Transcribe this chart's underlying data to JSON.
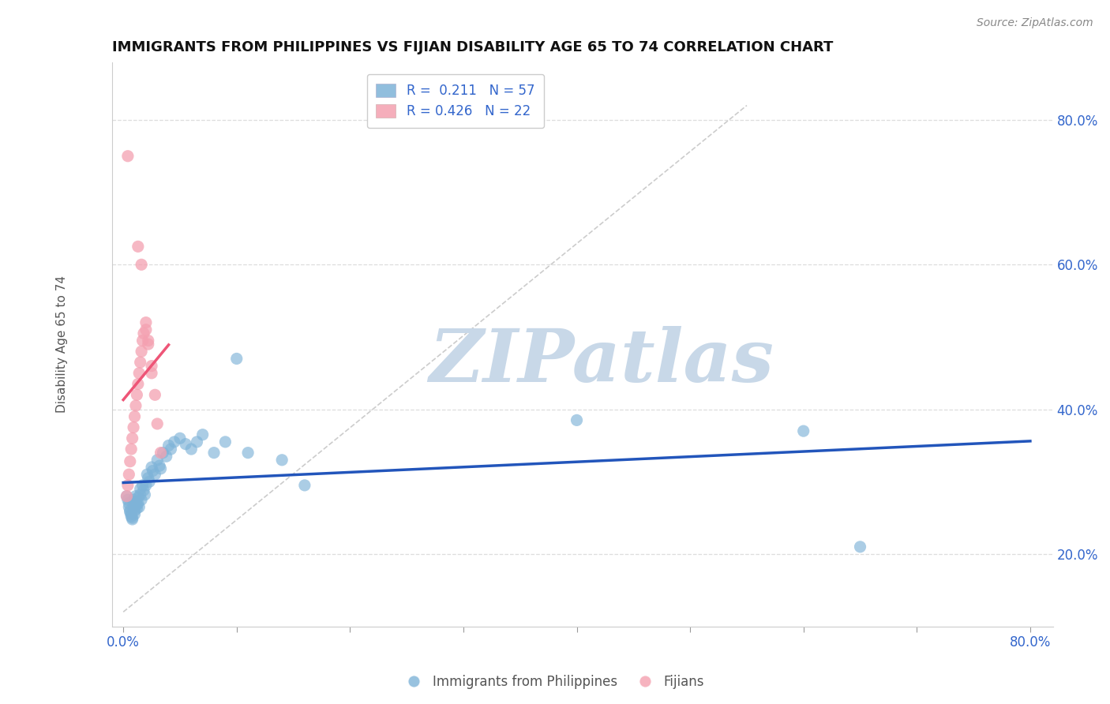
{
  "title": "IMMIGRANTS FROM PHILIPPINES VS FIJIAN DISABILITY AGE 65 TO 74 CORRELATION CHART",
  "source": "Source: ZipAtlas.com",
  "xlabel": "",
  "ylabel": "Disability Age 65 to 74",
  "xlim": [
    -0.01,
    0.82
  ],
  "ylim": [
    0.1,
    0.88
  ],
  "xticks": [
    0.0,
    0.1,
    0.2,
    0.3,
    0.4,
    0.5,
    0.6,
    0.7,
    0.8
  ],
  "xticklabels": [
    "0.0%",
    "",
    "",
    "",
    "",
    "",
    "",
    "",
    "80.0%"
  ],
  "yticks": [
    0.2,
    0.4,
    0.6,
    0.8
  ],
  "yticklabels": [
    "20.0%",
    "40.0%",
    "60.0%",
    "80.0%"
  ],
  "r_blue": 0.211,
  "n_blue": 57,
  "r_pink": 0.426,
  "n_pink": 22,
  "blue_color": "#7EB3D8",
  "pink_color": "#F4A0B0",
  "blue_line_color": "#2255BB",
  "pink_line_color": "#EE5577",
  "ref_line_color": "#CCCCCC",
  "watermark": "ZIPatlas",
  "watermark_color": "#C8D8E8",
  "blue_scatter_x": [
    0.003,
    0.004,
    0.005,
    0.005,
    0.006,
    0.006,
    0.007,
    0.007,
    0.008,
    0.008,
    0.009,
    0.009,
    0.01,
    0.01,
    0.01,
    0.011,
    0.011,
    0.012,
    0.012,
    0.013,
    0.013,
    0.014,
    0.015,
    0.015,
    0.016,
    0.017,
    0.018,
    0.019,
    0.02,
    0.021,
    0.022,
    0.023,
    0.025,
    0.026,
    0.028,
    0.03,
    0.032,
    0.033,
    0.035,
    0.038,
    0.04,
    0.042,
    0.045,
    0.05,
    0.055,
    0.06,
    0.065,
    0.07,
    0.08,
    0.09,
    0.1,
    0.11,
    0.14,
    0.16,
    0.4,
    0.6,
    0.65
  ],
  "blue_scatter_y": [
    0.28,
    0.275,
    0.27,
    0.265,
    0.26,
    0.258,
    0.255,
    0.252,
    0.25,
    0.248,
    0.275,
    0.27,
    0.265,
    0.26,
    0.255,
    0.28,
    0.272,
    0.268,
    0.263,
    0.278,
    0.27,
    0.265,
    0.29,
    0.282,
    0.275,
    0.295,
    0.288,
    0.282,
    0.295,
    0.31,
    0.305,
    0.3,
    0.32,
    0.315,
    0.31,
    0.33,
    0.322,
    0.318,
    0.34,
    0.335,
    0.35,
    0.345,
    0.355,
    0.36,
    0.352,
    0.345,
    0.355,
    0.365,
    0.34,
    0.355,
    0.47,
    0.34,
    0.33,
    0.295,
    0.385,
    0.37,
    0.21
  ],
  "pink_scatter_x": [
    0.003,
    0.004,
    0.005,
    0.006,
    0.007,
    0.008,
    0.009,
    0.01,
    0.011,
    0.012,
    0.013,
    0.014,
    0.015,
    0.016,
    0.017,
    0.018,
    0.02,
    0.022,
    0.025,
    0.028,
    0.03,
    0.033
  ],
  "pink_scatter_y": [
    0.28,
    0.295,
    0.31,
    0.328,
    0.345,
    0.36,
    0.375,
    0.39,
    0.405,
    0.42,
    0.435,
    0.45,
    0.465,
    0.48,
    0.495,
    0.505,
    0.52,
    0.49,
    0.45,
    0.42,
    0.38,
    0.34
  ],
  "pink_extra_y": [
    0.75,
    0.625,
    0.6,
    0.51,
    0.495,
    0.46
  ],
  "pink_extra_x": [
    0.004,
    0.013,
    0.016,
    0.02,
    0.022,
    0.025
  ],
  "background_color": "#FFFFFF",
  "grid_color": "#DDDDDD",
  "legend_blue_label": "Immigrants from Philippines",
  "legend_pink_label": "Fijians"
}
